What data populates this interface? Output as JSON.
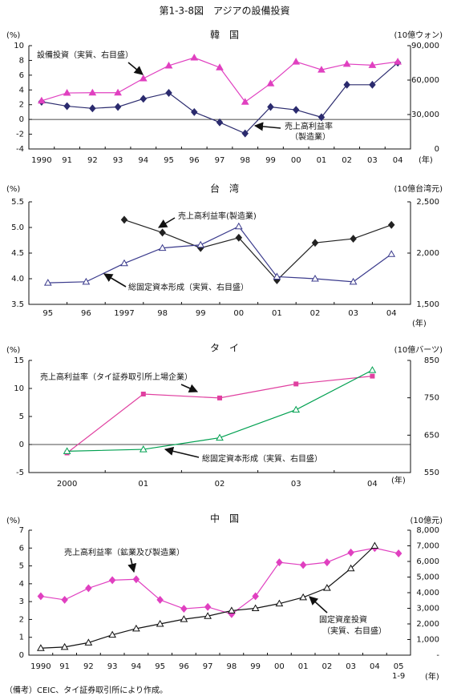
{
  "title": "第1-3-8図　アジアの設備投資",
  "note": "（備考）CEIC、タイ証券取引所により作成。",
  "chart_data": [
    {
      "type": "line",
      "title": "韓　国",
      "y_unit": "(%)",
      "y2_unit": "(10億ウォン)",
      "x_unit": "(年)",
      "categories": [
        "1990",
        "91",
        "92",
        "93",
        "94",
        "95",
        "96",
        "97",
        "98",
        "99",
        "00",
        "01",
        "02",
        "03",
        "04"
      ],
      "series": [
        {
          "name": "売上高利益率（製造業）",
          "color": "#2b2b6e",
          "marker": "diamond",
          "axis": "y",
          "values": [
            2.4,
            1.8,
            1.5,
            1.7,
            2.8,
            3.6,
            1.0,
            -0.4,
            -1.9,
            1.7,
            1.3,
            0.3,
            4.7,
            4.7,
            7.7
          ]
        },
        {
          "name": "設備投資（実質、右目盛）",
          "color": "#e040c0",
          "marker": "triangle",
          "axis": "y2",
          "values": [
            42000,
            48800,
            49000,
            49000,
            61400,
            72600,
            79500,
            71000,
            41000,
            57000,
            76000,
            69000,
            74000,
            73000,
            76000
          ]
        }
      ],
      "ylim": [
        -4,
        10
      ],
      "yticks": [
        -4,
        -2,
        0,
        2,
        4,
        6,
        8,
        10
      ],
      "y2lim": [
        0,
        90000
      ],
      "y2ticks": [
        0,
        {
          "value": 30000,
          "label": "30,000"
        },
        {
          "value": 60000,
          "label": "60,000"
        },
        {
          "value": 90000,
          "label": "90,000"
        }
      ],
      "annotations": [
        "設備投資（実質、右目盛）",
        "売上高利益率",
        "（製造業）"
      ]
    },
    {
      "type": "line",
      "title": "台　湾",
      "y_unit": "(%)",
      "y2_unit": "(10億台湾元)",
      "x_unit": "(年)",
      "categories": [
        "95",
        "96",
        "1997",
        "98",
        "99",
        "00",
        "01",
        "02",
        "03",
        "04"
      ],
      "series": [
        {
          "name": "売上高利益率(製造業)",
          "color": "#222222",
          "marker": "diamond",
          "axis": "y",
          "values": [
            null,
            null,
            5.15,
            4.9,
            4.6,
            4.8,
            3.97,
            4.7,
            4.78,
            5.05
          ]
        },
        {
          "name": "総固定資本形成（実質、右目盛）",
          "color": "#3a3a8c",
          "marker": "triangle-open",
          "axis": "y2",
          "values": [
            1710,
            1720,
            1900,
            2050,
            2080,
            2260,
            1770,
            1750,
            1720,
            1990
          ]
        }
      ],
      "ylim": [
        3.5,
        5.5
      ],
      "yticks": [
        3.5,
        {
          "value": 4,
          "label": "4.0"
        },
        4.5,
        {
          "value": 5,
          "label": "5.0"
        },
        5.5
      ],
      "y2lim": [
        1500,
        2500
      ],
      "y2ticks": [
        {
          "value": 1500,
          "label": "1,500"
        },
        {
          "value": 2000,
          "label": "2,000"
        },
        {
          "value": 2500,
          "label": "2,500"
        }
      ],
      "annotations": [
        "売上高利益率(製造業)",
        "総固定資本形成（実質、右目盛）"
      ]
    },
    {
      "type": "line",
      "title": "タ　イ",
      "y_unit": "(%)",
      "y2_unit": "(10億バーツ)",
      "x_unit": "(年)",
      "categories": [
        "2000",
        "01",
        "02",
        "03",
        "04"
      ],
      "series": [
        {
          "name": "売上高利益率（タイ証券取引所上場企業）",
          "color": "#e040a0",
          "marker": "square",
          "axis": "y",
          "values": [
            -1.5,
            9.0,
            8.3,
            10.8,
            12.2
          ]
        },
        {
          "name": "総固定資本形成（実質、右目盛）",
          "color": "#00a050",
          "marker": "triangle-open",
          "axis": "y2",
          "values": [
            607,
            612,
            643,
            718,
            824
          ]
        }
      ],
      "ylim": [
        -5,
        15
      ],
      "yticks": [
        -5,
        0,
        5,
        10,
        15
      ],
      "y2lim": [
        550,
        850
      ],
      "y2ticks": [
        550,
        650,
        750,
        850
      ],
      "annotations": [
        "売上高利益率（タイ証券取引所上場企業）",
        "総固定資本形成（実質、右目盛）"
      ]
    },
    {
      "type": "line",
      "title": "中　国",
      "y_unit": "(%)",
      "y2_unit": "(10億元)",
      "x_unit": "(年)",
      "categories": [
        "1990",
        "91",
        "92",
        "93",
        "94",
        "95",
        "96",
        "97",
        "98",
        "99",
        "00",
        "01",
        "02",
        "03",
        "04",
        "05"
      ],
      "x_subnote": "1-9",
      "series": [
        {
          "name": "売上高利益率（鉱業及び製造業）",
          "color": "#e040c0",
          "marker": "diamond",
          "axis": "y",
          "values": [
            3.3,
            3.1,
            3.75,
            4.2,
            4.25,
            3.1,
            2.6,
            2.7,
            2.3,
            3.3,
            5.2,
            5.05,
            5.2,
            5.75,
            6.0,
            5.7
          ]
        },
        {
          "name": "固定資産投資（実質、右目盛）",
          "color": "#111111",
          "marker": "triangle-open",
          "axis": "y2",
          "values": [
            450,
            520,
            800,
            1300,
            1700,
            2000,
            2300,
            2500,
            2850,
            3000,
            3300,
            3700,
            4300,
            5550,
            7000,
            null
          ]
        }
      ],
      "ylim": [
        0,
        7
      ],
      "yticks": [
        0,
        1,
        2,
        3,
        4,
        5,
        6,
        7
      ],
      "y2lim": [
        0,
        8000
      ],
      "y2ticks": [
        {
          "value": 0,
          "label": "-"
        },
        {
          "value": 1000,
          "label": "1,000"
        },
        {
          "value": 2000,
          "label": "2,000"
        },
        {
          "value": 3000,
          "label": "3,000"
        },
        {
          "value": 4000,
          "label": "4,000"
        },
        {
          "value": 5000,
          "label": "5,000"
        },
        {
          "value": 6000,
          "label": "6,000"
        },
        {
          "value": 7000,
          "label": "7,000"
        },
        {
          "value": 8000,
          "label": "8,000"
        }
      ],
      "annotations": [
        "売上高利益率（鉱業及び製造業）",
        "固定資産投資",
        "（実質、右目盛）"
      ]
    }
  ]
}
